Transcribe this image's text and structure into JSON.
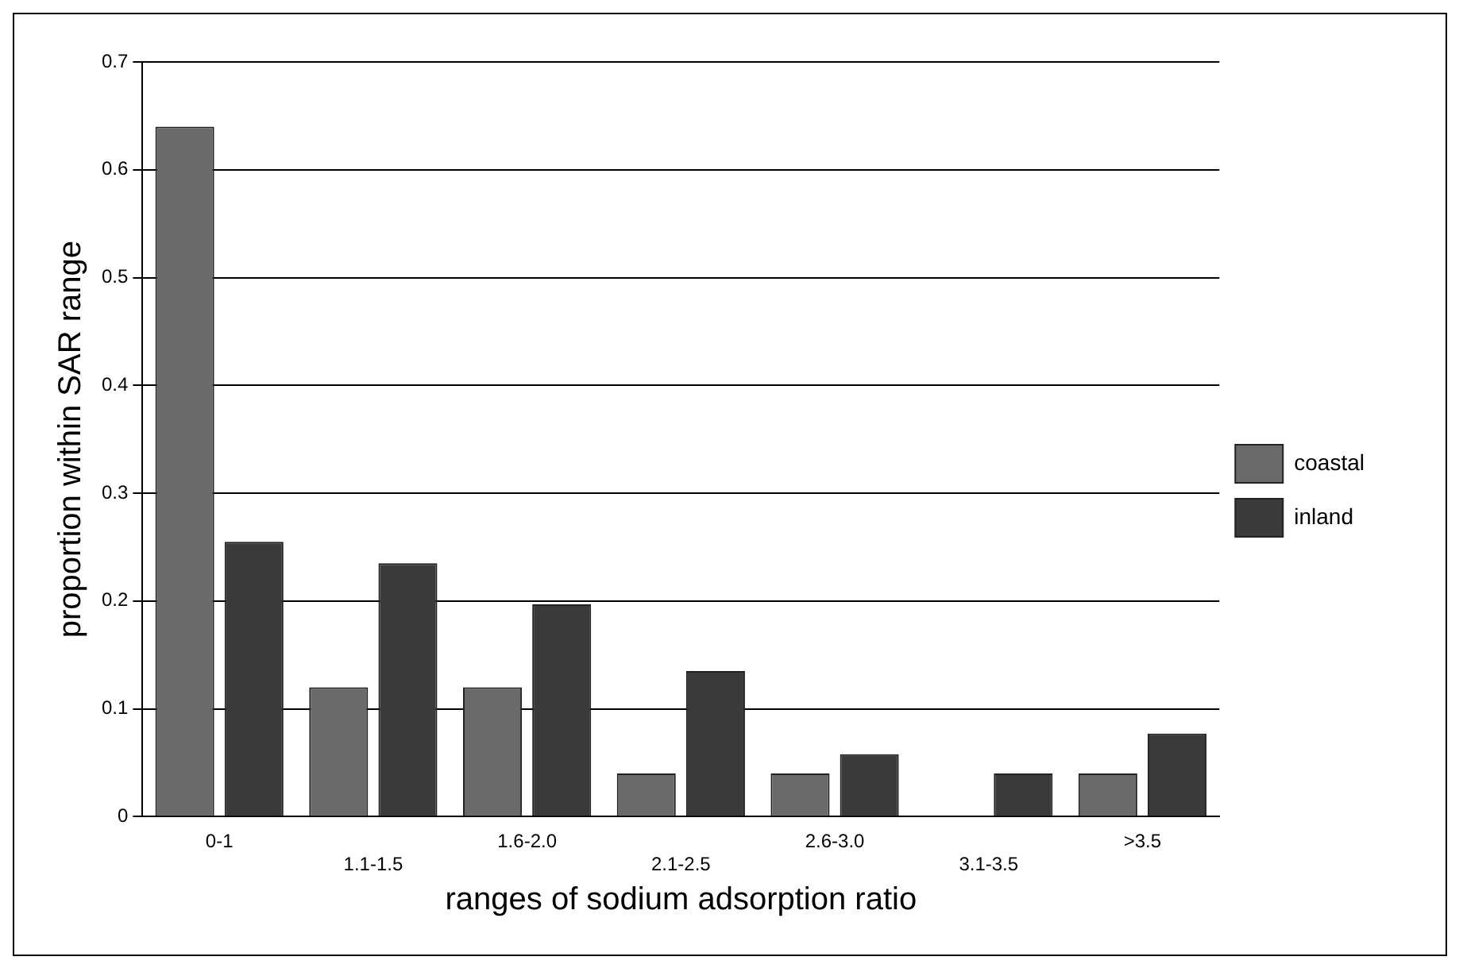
{
  "chart_data": {
    "type": "bar",
    "xlabel": "ranges of sodium adsorption ratio",
    "ylabel": "proportion within SAR range",
    "categories": [
      "0-1",
      "1.1-1.5",
      "1.6-2.0",
      "2.1-2.5",
      "2.6-3.0",
      "3.1-3.5",
      ">3.5"
    ],
    "series": [
      {
        "name": "coastal",
        "color": "#6a6a6a",
        "values": [
          0.64,
          0.12,
          0.12,
          0.04,
          0.04,
          0,
          0.04
        ]
      },
      {
        "name": "inland",
        "color": "#3a3a3a",
        "values": [
          0.255,
          0.235,
          0.197,
          0.135,
          0.058,
          0.04,
          0.077
        ]
      }
    ],
    "ylim": [
      0,
      0.7
    ],
    "yticks": [
      0,
      0.1,
      0.2,
      0.3,
      0.4,
      0.5,
      0.6,
      0.7
    ],
    "grid": "y",
    "legend": "right"
  }
}
